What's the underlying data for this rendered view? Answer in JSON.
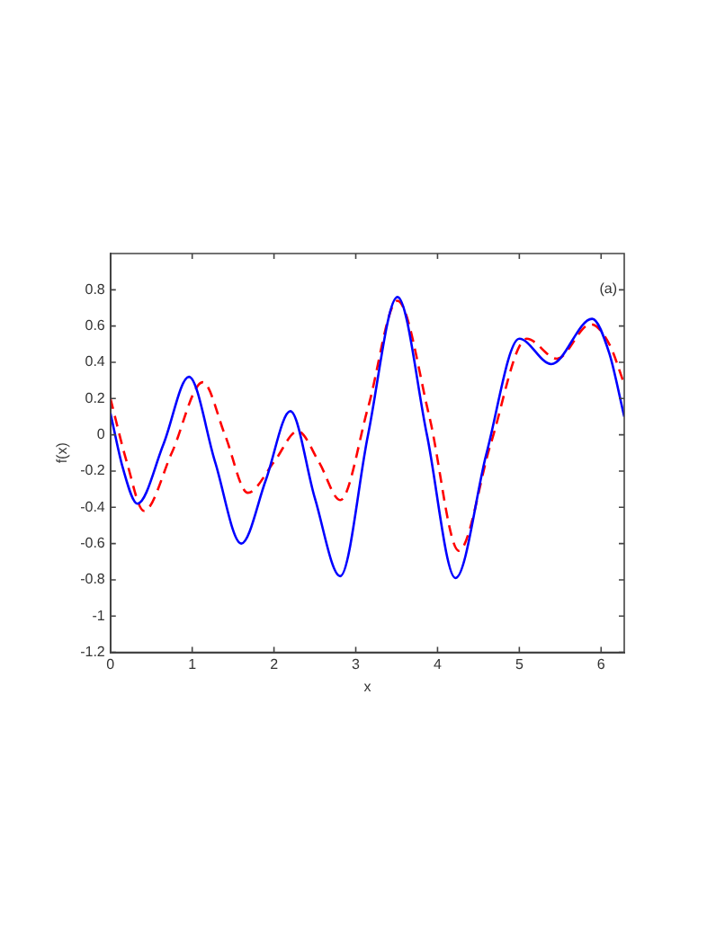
{
  "chart_data": {
    "type": "line",
    "xlabel": "x",
    "ylabel": "f(x)",
    "annotations": [
      "(a)"
    ],
    "xlim": [
      0,
      6.283
    ],
    "xticks": [
      0,
      1,
      2,
      3,
      4,
      5,
      6
    ],
    "ylim": [
      -1.2,
      1
    ],
    "yticks": [
      -1.2,
      -1,
      -0.8,
      -0.6,
      -0.4,
      -0.2,
      0,
      0.2,
      0.4,
      0.6,
      0.8
    ],
    "grid": false,
    "legend": false,
    "marker": "none",
    "series": [
      {
        "color": "#0000ff",
        "line_style": "solid",
        "x": [
          0,
          0.15,
          0.33,
          0.65,
          0.96,
          1.28,
          1.6,
          1.9,
          2.2,
          2.5,
          2.81,
          3.15,
          3.51,
          3.87,
          4.22,
          4.6,
          5.0,
          5.39,
          5.89,
          6.1,
          6.283
        ],
        "values": [
          0.12,
          -0.18,
          -0.38,
          -0.05,
          0.32,
          -0.15,
          -0.6,
          -0.25,
          0.13,
          -0.35,
          -0.78,
          0.0,
          0.76,
          0.0,
          -0.79,
          -0.1,
          0.53,
          0.39,
          0.64,
          0.45,
          0.1
        ]
      },
      {
        "color": "#ff0000",
        "line_style": "dashed",
        "x": [
          0,
          0.2,
          0.41,
          0.75,
          1.13,
          1.4,
          1.68,
          2.0,
          2.29,
          2.55,
          2.81,
          3.15,
          3.51,
          3.9,
          4.26,
          4.65,
          5.09,
          5.46,
          5.87,
          6.1,
          6.283
        ],
        "values": [
          0.2,
          -0.15,
          -0.42,
          -0.1,
          0.29,
          0.0,
          -0.32,
          -0.15,
          0.02,
          -0.15,
          -0.36,
          0.15,
          0.74,
          0.1,
          -0.64,
          -0.05,
          0.53,
          0.42,
          0.61,
          0.5,
          0.28
        ]
      }
    ]
  }
}
